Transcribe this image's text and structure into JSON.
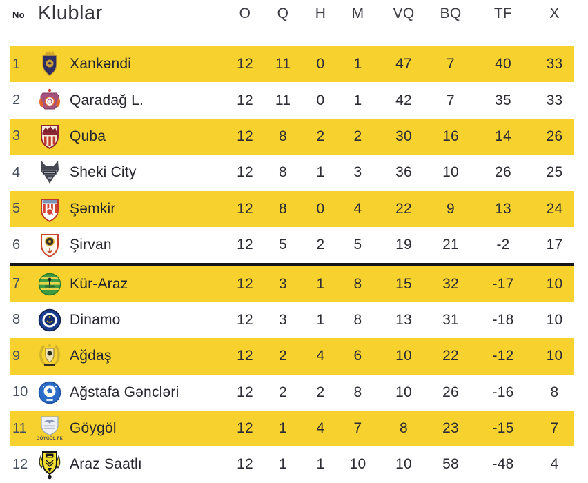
{
  "table": {
    "header": {
      "no": "No",
      "klublar": "Klublar",
      "stats": [
        "O",
        "Q",
        "H",
        "M",
        "VQ",
        "BQ",
        "TF",
        "X"
      ]
    },
    "colors": {
      "highlight_row": "#F7D22E",
      "divider": "#15151a",
      "position_number": "#454e5e",
      "club_name": "#26262e",
      "header_text": "#3b3b43"
    },
    "divider_after_row": 6,
    "rows": [
      {
        "position": "1",
        "club": "Xankəndi",
        "logo": "xankendi-crest",
        "logo_colors": [
          "#2d2e63",
          "#d2a62c"
        ],
        "logo_caption": "",
        "highlighted": true,
        "stats": [
          "12",
          "11",
          "0",
          "1",
          "47",
          "7",
          "40",
          "33"
        ]
      },
      {
        "position": "2",
        "club": "Qaradağ L.",
        "logo": "qaradag-crest",
        "logo_colors": [
          "#a4517d",
          "#e0662c",
          "#cf3a2a"
        ],
        "logo_caption": "",
        "highlighted": false,
        "stats": [
          "12",
          "11",
          "0",
          "1",
          "42",
          "7",
          "35",
          "33"
        ]
      },
      {
        "position": "3",
        "club": "Quba",
        "logo": "quba-crest",
        "logo_colors": [
          "#8e2433",
          "#c43b2e",
          "#f2ead6"
        ],
        "logo_caption": "",
        "highlighted": true,
        "stats": [
          "12",
          "8",
          "2",
          "2",
          "30",
          "16",
          "14",
          "26"
        ]
      },
      {
        "position": "4",
        "club": "Sheki City",
        "logo": "sheki-city-crest",
        "logo_colors": [
          "#454851",
          "#b9bcc4"
        ],
        "logo_caption": "",
        "highlighted": false,
        "stats": [
          "12",
          "8",
          "1",
          "3",
          "36",
          "10",
          "26",
          "25"
        ]
      },
      {
        "position": "5",
        "club": "Şəmkir",
        "logo": "samkir-crest",
        "logo_colors": [
          "#c0392b",
          "#7d94b5"
        ],
        "logo_caption": "",
        "highlighted": true,
        "stats": [
          "12",
          "8",
          "0",
          "4",
          "22",
          "9",
          "13",
          "24"
        ]
      },
      {
        "position": "6",
        "club": "Şirvan",
        "logo": "sirvan-crest",
        "logo_colors": [
          "#c4452a",
          "#3a3226",
          "#d2a62c"
        ],
        "logo_caption": "",
        "highlighted": false,
        "stats": [
          "12",
          "5",
          "2",
          "5",
          "19",
          "21",
          "-2",
          "17"
        ]
      },
      {
        "position": "7",
        "club": "Kür-Araz",
        "logo": "kur-araz-crest",
        "logo_colors": [
          "#3e9b41",
          "#e8d44a"
        ],
        "logo_caption": "",
        "highlighted": true,
        "stats": [
          "12",
          "3",
          "1",
          "8",
          "15",
          "32",
          "-17",
          "10"
        ]
      },
      {
        "position": "8",
        "club": "Dinamo",
        "logo": "dinamo-crest",
        "logo_colors": [
          "#1c3e8e",
          "#152f6e",
          "#d2a62c"
        ],
        "logo_caption": "",
        "highlighted": false,
        "stats": [
          "12",
          "3",
          "1",
          "8",
          "13",
          "31",
          "-18",
          "10"
        ]
      },
      {
        "position": "9",
        "club": "Ağdaş",
        "logo": "agdas-crest",
        "logo_colors": [
          "#d2b32c",
          "#2f2f23"
        ],
        "logo_caption": "",
        "highlighted": true,
        "stats": [
          "12",
          "2",
          "4",
          "6",
          "10",
          "22",
          "-12",
          "10"
        ]
      },
      {
        "position": "10",
        "club": "Ağstafa Gəncləri",
        "logo": "agstafa-crest",
        "logo_colors": [
          "#2a6cc8",
          "#ffffff"
        ],
        "logo_caption": "",
        "highlighted": false,
        "stats": [
          "12",
          "2",
          "2",
          "8",
          "10",
          "26",
          "-16",
          "8"
        ]
      },
      {
        "position": "11",
        "club": "Göygöl",
        "logo": "goygol-crest",
        "logo_colors": [
          "#edeff4",
          "#8a9ab8"
        ],
        "logo_caption": "GÖYGÖL FK",
        "highlighted": true,
        "stats": [
          "12",
          "1",
          "4",
          "7",
          "8",
          "23",
          "-15",
          "7"
        ]
      },
      {
        "position": "12",
        "club": "Araz Saatlı",
        "logo": "araz-saatli-crest",
        "logo_colors": [
          "#f0dd33",
          "#17171b"
        ],
        "logo_caption": "",
        "highlighted": false,
        "stats": [
          "12",
          "1",
          "1",
          "10",
          "10",
          "58",
          "-48",
          "4"
        ]
      }
    ]
  }
}
